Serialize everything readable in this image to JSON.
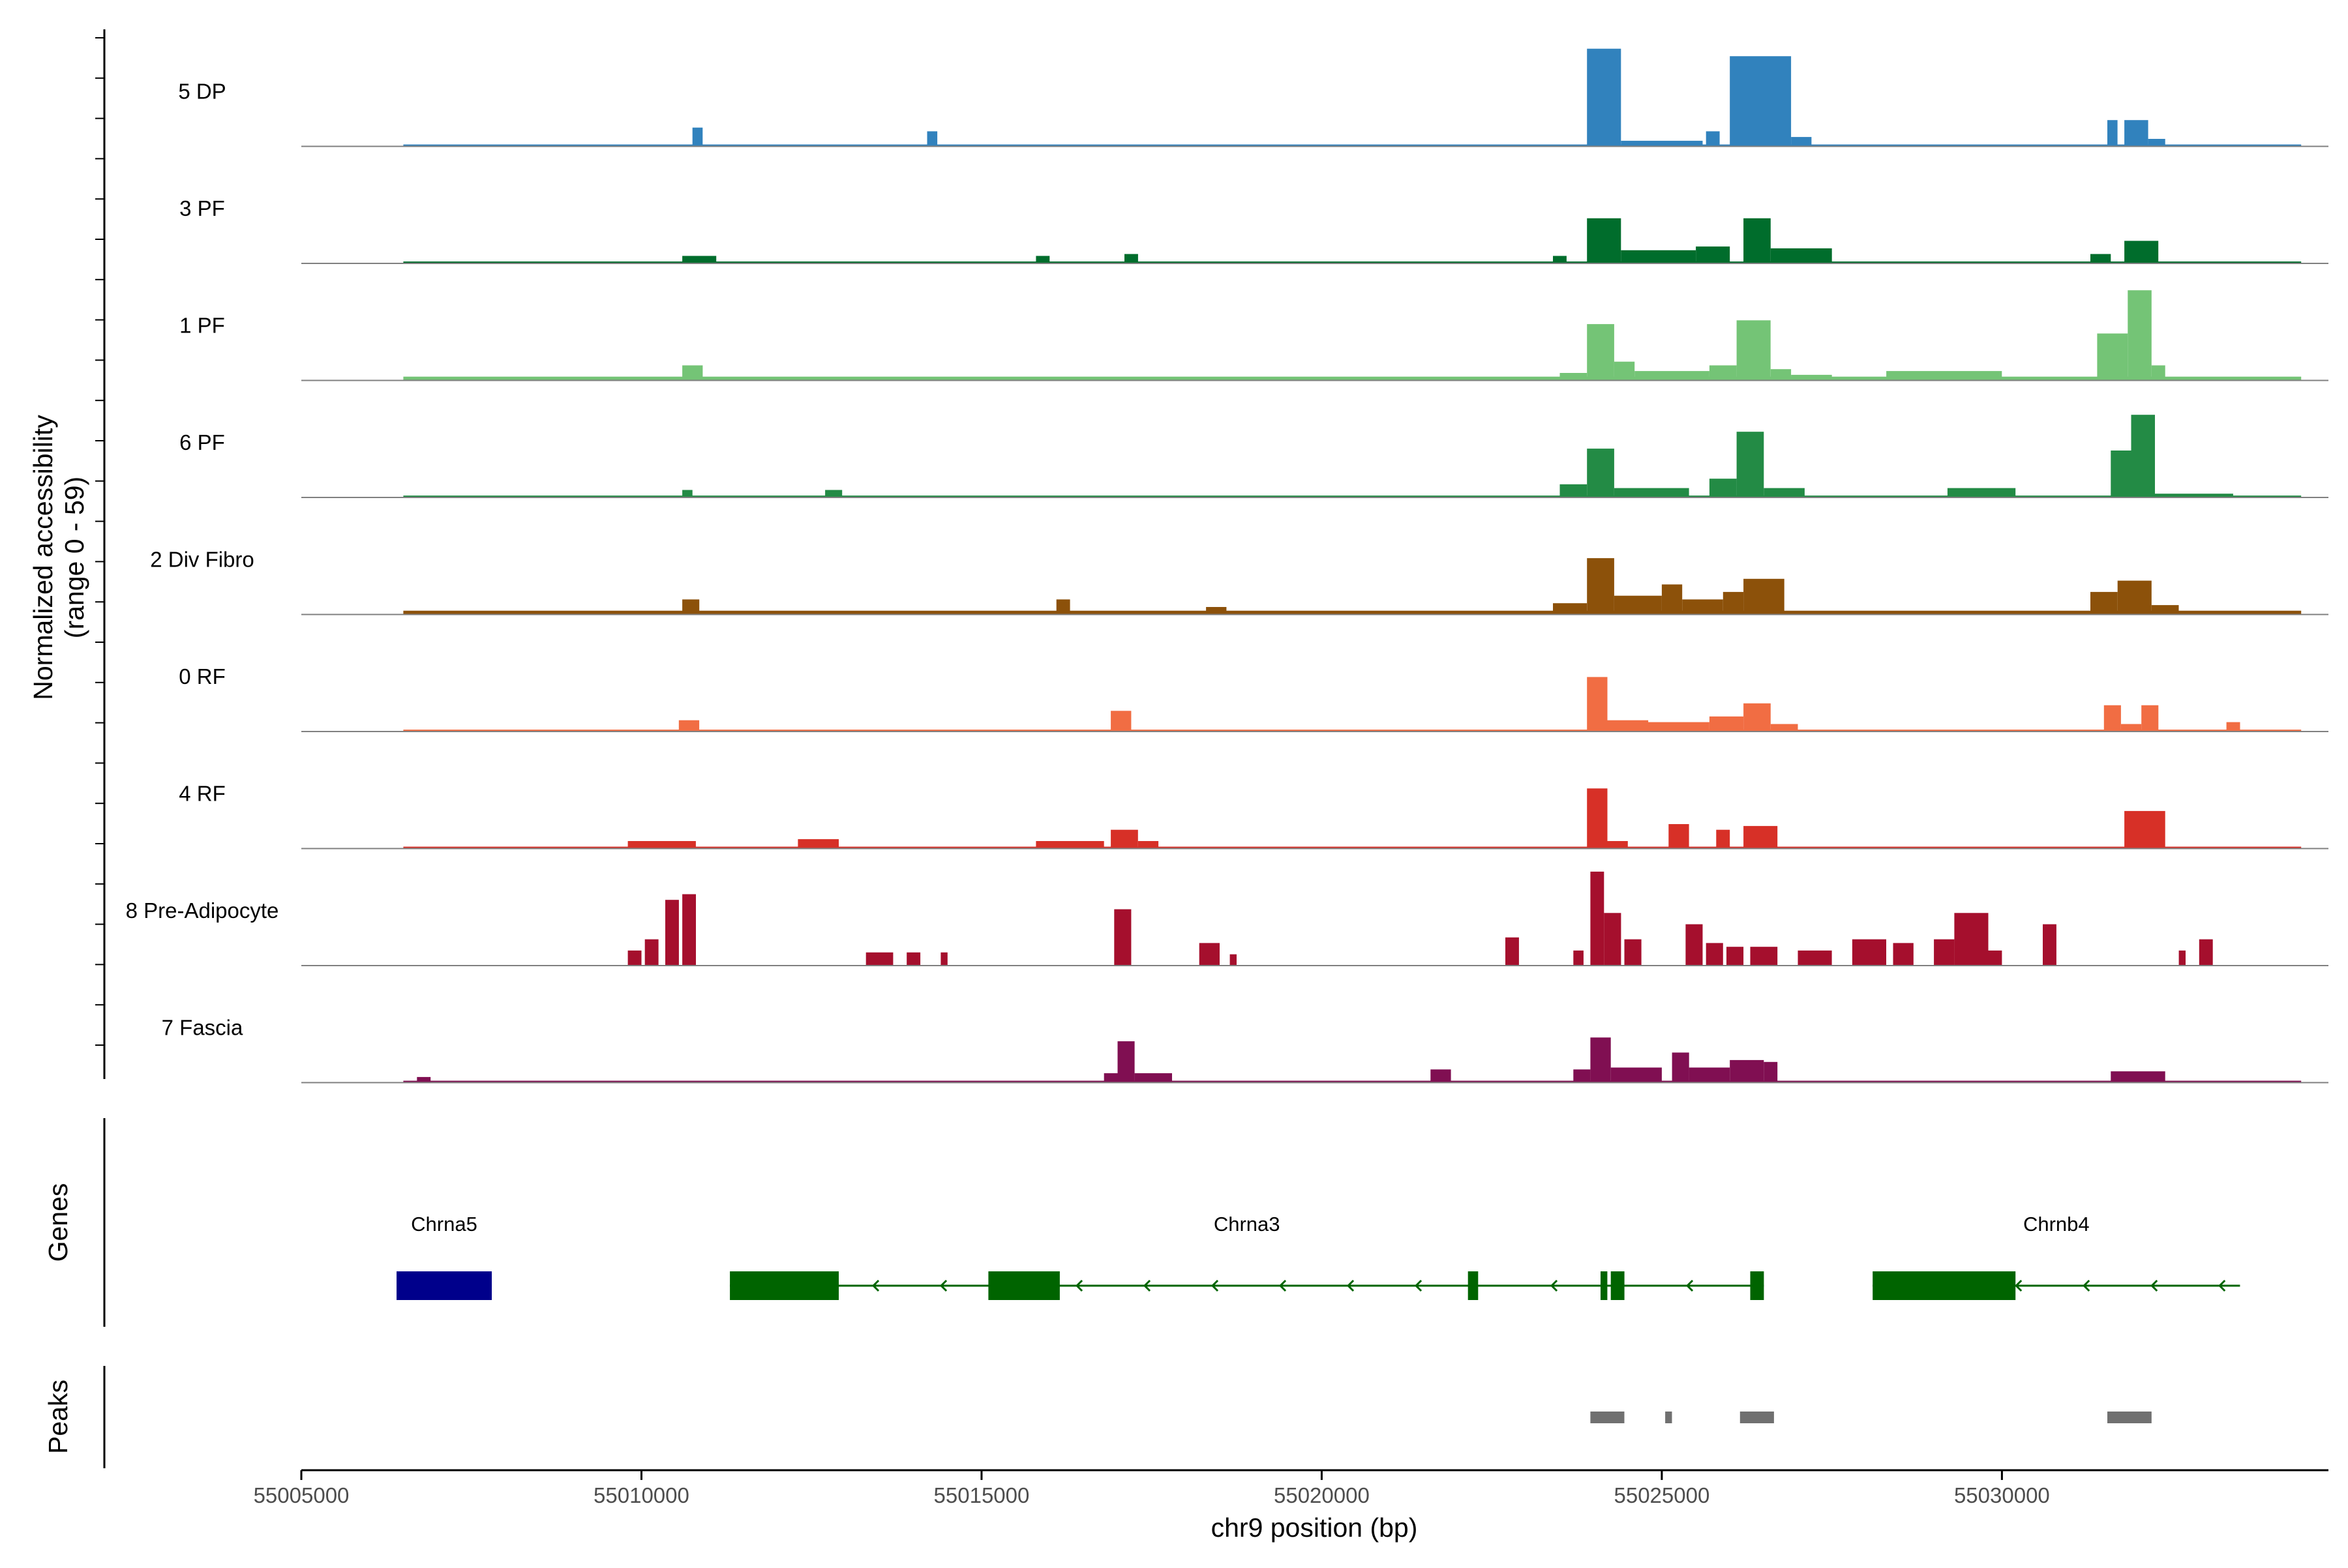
{
  "chart_data": {
    "type": "area",
    "title": "",
    "ylabel_line1": "Normalized accessibility",
    "ylabel_line2": "(range 0 - 59)",
    "xlabel": "chr9 position (bp)",
    "genes_label": "Genes",
    "peaks_label": "Peaks",
    "xlim": [
      55005000,
      55034800
    ],
    "ylim": [
      0,
      59
    ],
    "grid": false,
    "x_ticks": [
      55005000,
      55010000,
      55015000,
      55020000,
      55025000,
      55030000
    ],
    "x_tick_labels": [
      "55005000",
      "55010000",
      "55015000",
      "55020000",
      "55025000",
      "55030000"
    ],
    "series": [
      {
        "name": "5 DP",
        "color": "#3182BD",
        "rows": [
          [
            55006500,
            55034400,
            1
          ],
          [
            55010750,
            55010900,
            10
          ],
          [
            55014200,
            55014350,
            8
          ],
          [
            55023900,
            55024400,
            52
          ],
          [
            55024400,
            55025600,
            3
          ],
          [
            55025650,
            55025850,
            8
          ],
          [
            55026000,
            55026900,
            48
          ],
          [
            55026900,
            55027200,
            5
          ],
          [
            55031550,
            55031700,
            14
          ],
          [
            55031800,
            55032150,
            14
          ],
          [
            55032150,
            55032400,
            4
          ]
        ]
      },
      {
        "name": "3 PF",
        "color": "#006D2C",
        "rows": [
          [
            55006500,
            55034400,
            1
          ],
          [
            55010600,
            55011100,
            4
          ],
          [
            55015800,
            55016000,
            4
          ],
          [
            55017100,
            55017300,
            5
          ],
          [
            55023400,
            55023600,
            4
          ],
          [
            55023900,
            55024400,
            24
          ],
          [
            55024400,
            55025500,
            7
          ],
          [
            55025500,
            55026000,
            9
          ],
          [
            55026200,
            55026600,
            24
          ],
          [
            55026600,
            55027500,
            8
          ],
          [
            55031300,
            55031600,
            5
          ],
          [
            55031800,
            55032300,
            12
          ]
        ]
      },
      {
        "name": "1 PF",
        "color": "#74C476",
        "rows": [
          [
            55006500,
            55034400,
            2
          ],
          [
            55010600,
            55010900,
            8
          ],
          [
            55023500,
            55023900,
            4
          ],
          [
            55023900,
            55024300,
            30
          ],
          [
            55024300,
            55024600,
            10
          ],
          [
            55024600,
            55025700,
            5
          ],
          [
            55025700,
            55026100,
            8
          ],
          [
            55026100,
            55026600,
            32
          ],
          [
            55026600,
            55026900,
            6
          ],
          [
            55026900,
            55027500,
            3
          ],
          [
            55028300,
            55029200,
            5
          ],
          [
            55029200,
            55030000,
            5
          ],
          [
            55031400,
            55031850,
            25
          ],
          [
            55031850,
            55032200,
            48
          ],
          [
            55032200,
            55032400,
            8
          ]
        ]
      },
      {
        "name": "6 PF",
        "color": "#238B45",
        "rows": [
          [
            55006500,
            55034400,
            1
          ],
          [
            55010600,
            55010750,
            4
          ],
          [
            55012700,
            55012950,
            4
          ],
          [
            55023500,
            55023900,
            7
          ],
          [
            55023900,
            55024300,
            26
          ],
          [
            55024300,
            55025400,
            5
          ],
          [
            55025700,
            55026100,
            10
          ],
          [
            55026100,
            55026500,
            35
          ],
          [
            55026500,
            55027100,
            5
          ],
          [
            55029200,
            55030200,
            5
          ],
          [
            55031600,
            55031900,
            25
          ],
          [
            55031900,
            55032250,
            44
          ],
          [
            55032250,
            55033400,
            2
          ]
        ]
      },
      {
        "name": "2 Div Fibro",
        "color": "#8C510A",
        "rows": [
          [
            55006500,
            55034400,
            2
          ],
          [
            55010600,
            55010850,
            8
          ],
          [
            55016100,
            55016300,
            8
          ],
          [
            55018300,
            55018600,
            4
          ],
          [
            55023400,
            55023900,
            6
          ],
          [
            55023900,
            55024300,
            30
          ],
          [
            55024300,
            55025000,
            10
          ],
          [
            55025000,
            55025300,
            16
          ],
          [
            55025300,
            55025900,
            8
          ],
          [
            55025900,
            55026200,
            12
          ],
          [
            55026200,
            55026800,
            19
          ],
          [
            55031300,
            55031700,
            12
          ],
          [
            55031700,
            55032200,
            18
          ],
          [
            55032200,
            55032600,
            5
          ]
        ]
      },
      {
        "name": "0 RF",
        "color": "#F16D43",
        "rows": [
          [
            55006500,
            55034400,
            1
          ],
          [
            55010550,
            55010850,
            6
          ],
          [
            55016900,
            55017200,
            11
          ],
          [
            55023900,
            55024200,
            29
          ],
          [
            55024200,
            55024800,
            6
          ],
          [
            55024800,
            55025700,
            5
          ],
          [
            55025700,
            55026200,
            8
          ],
          [
            55026200,
            55026600,
            15
          ],
          [
            55026600,
            55027000,
            4
          ],
          [
            55031500,
            55031750,
            14
          ],
          [
            55031750,
            55032050,
            4
          ],
          [
            55032050,
            55032300,
            14
          ],
          [
            55033300,
            55033500,
            5
          ]
        ]
      },
      {
        "name": "4 RF",
        "color": "#D73027",
        "rows": [
          [
            55006500,
            55034400,
            1
          ],
          [
            55009800,
            55010800,
            4
          ],
          [
            55012300,
            55012900,
            5
          ],
          [
            55015800,
            55016800,
            4
          ],
          [
            55016900,
            55017300,
            10
          ],
          [
            55017300,
            55017600,
            4
          ],
          [
            55023900,
            55024200,
            32
          ],
          [
            55024200,
            55024500,
            4
          ],
          [
            55025100,
            55025400,
            13
          ],
          [
            55025800,
            55026000,
            10
          ],
          [
            55026200,
            55026700,
            12
          ],
          [
            55031800,
            55032400,
            20
          ]
        ]
      },
      {
        "name": "8 Pre-Adipocyte",
        "color": "#A50F2D",
        "rows": [
          [
            55009800,
            55010000,
            8
          ],
          [
            55010050,
            55010250,
            14
          ],
          [
            55010350,
            55010550,
            35
          ],
          [
            55010600,
            55010800,
            38
          ],
          [
            55013300,
            55013700,
            7
          ],
          [
            55013900,
            55014100,
            7
          ],
          [
            55014400,
            55014500,
            7
          ],
          [
            55016950,
            55017200,
            30
          ],
          [
            55018200,
            55018500,
            12
          ],
          [
            55018650,
            55018750,
            6
          ],
          [
            55022700,
            55022900,
            15
          ],
          [
            55023700,
            55023850,
            8
          ],
          [
            55023950,
            55024150,
            50
          ],
          [
            55024150,
            55024400,
            28
          ],
          [
            55024450,
            55024700,
            14
          ],
          [
            55025350,
            55025600,
            22
          ],
          [
            55025650,
            55025900,
            12
          ],
          [
            55025950,
            55026200,
            10
          ],
          [
            55026300,
            55026700,
            10
          ],
          [
            55027000,
            55027500,
            8
          ],
          [
            55027800,
            55028300,
            14
          ],
          [
            55028400,
            55028700,
            12
          ],
          [
            55029000,
            55029300,
            14
          ],
          [
            55029300,
            55029800,
            28
          ],
          [
            55029800,
            55030000,
            8
          ],
          [
            55030600,
            55030800,
            22
          ],
          [
            55032600,
            55032700,
            8
          ],
          [
            55032900,
            55033100,
            14
          ]
        ]
      },
      {
        "name": "7 Fascia",
        "color": "#800F52",
        "rows": [
          [
            55006500,
            55034400,
            1
          ],
          [
            55006700,
            55006900,
            3
          ],
          [
            55016800,
            55017000,
            5
          ],
          [
            55017000,
            55017250,
            22
          ],
          [
            55017250,
            55017800,
            5
          ],
          [
            55021600,
            55021900,
            7
          ],
          [
            55023700,
            55023950,
            7
          ],
          [
            55023950,
            55024250,
            24
          ],
          [
            55024250,
            55025000,
            8
          ],
          [
            55025150,
            55025400,
            16
          ],
          [
            55025400,
            55026000,
            8
          ],
          [
            55026000,
            55026500,
            12
          ],
          [
            55026500,
            55026700,
            11
          ],
          [
            55031600,
            55032400,
            6
          ]
        ]
      }
    ],
    "genes": [
      {
        "name": "Chrna5",
        "color": "#00008B",
        "start": 55006400,
        "end": 55007800,
        "strand": "+",
        "exons": [
          [
            55006400,
            55007800
          ]
        ]
      },
      {
        "name": "Chrna3",
        "color": "#006400",
        "start": 55011300,
        "end": 55026500,
        "strand": "-",
        "exons": [
          [
            55011300,
            55012900
          ],
          [
            55015100,
            55016150
          ],
          [
            55022150,
            55022300
          ],
          [
            55024100,
            55024200
          ],
          [
            55024250,
            55024450
          ],
          [
            55026300,
            55026500
          ]
        ]
      },
      {
        "name": "Chrnb4",
        "color": "#006400",
        "start": 55028100,
        "end": 55033500,
        "strand": "-",
        "exons": [
          [
            55028100,
            55030200
          ]
        ]
      }
    ],
    "peaks": [
      [
        55023950,
        55024450
      ],
      [
        55025050,
        55025150
      ],
      [
        55026150,
        55026650
      ],
      [
        55031550,
        55032200
      ]
    ]
  }
}
